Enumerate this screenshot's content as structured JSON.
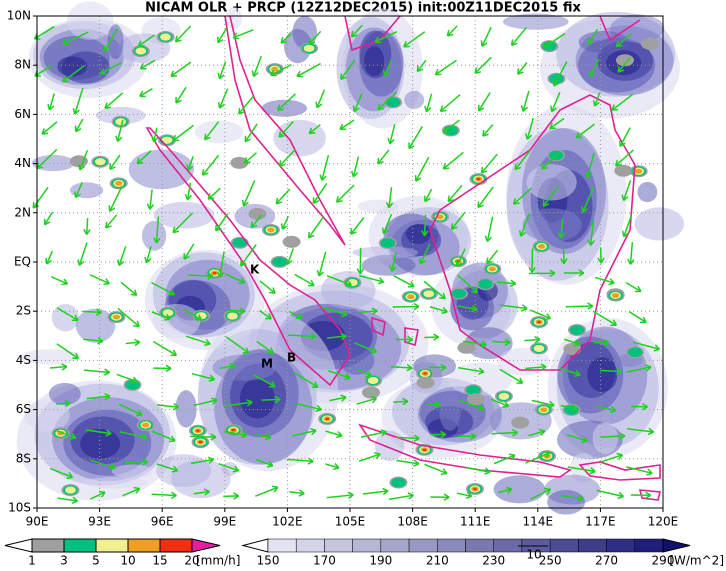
{
  "title": "NICAM OLR + PRCP (12Z12DEC2015) init:00Z11DEC2015 fix",
  "map": {
    "lat_labels": [
      "10N",
      "8N",
      "6N",
      "4N",
      "2N",
      "EQ",
      "2S",
      "4S",
      "6S",
      "8S",
      "10S"
    ],
    "lon_labels": [
      "90E",
      "93E",
      "96E",
      "99E",
      "102E",
      "105E",
      "108E",
      "111E",
      "114E",
      "117E",
      "120E"
    ],
    "place_labels": [
      "K",
      "M",
      "B"
    ],
    "vector_reference": "10"
  },
  "precip_legend": {
    "labels": [
      "1",
      "3",
      "5",
      "10",
      "15",
      "20"
    ],
    "unit": "[mm/h]",
    "colors": [
      "#ffffff",
      "#a0a0a0",
      "#00c080",
      "#f0f090",
      "#f0a020",
      "#f03010",
      "#e020a0"
    ]
  },
  "olr_legend": {
    "labels": [
      "150",
      "170",
      "190",
      "210",
      "230",
      "250",
      "270",
      "290"
    ],
    "unit": "[W/m^2]"
  }
}
